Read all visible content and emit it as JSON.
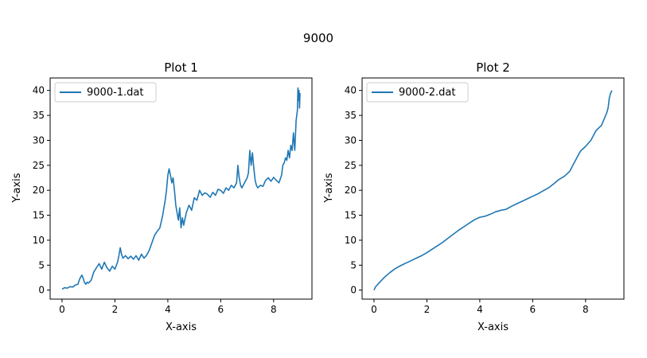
{
  "figure": {
    "title": "9000"
  },
  "chart_data": [
    {
      "type": "line",
      "title": "Plot 1",
      "xlabel": "X-axis",
      "ylabel": "Y-axis",
      "xlim": [
        -0.45,
        9.45
      ],
      "ylim": [
        -1.8,
        42.5
      ],
      "xticks": [
        0,
        2,
        4,
        6,
        8
      ],
      "yticks": [
        0,
        5,
        10,
        15,
        20,
        25,
        30,
        35,
        40
      ],
      "grid": false,
      "legend_position": "upper-left",
      "series": [
        {
          "name": "9000-1.dat",
          "color": "#1f77b4",
          "x": [
            0.0,
            0.1,
            0.2,
            0.3,
            0.4,
            0.5,
            0.6,
            0.65,
            0.7,
            0.75,
            0.8,
            0.85,
            0.9,
            0.95,
            1.0,
            1.1,
            1.15,
            1.2,
            1.3,
            1.4,
            1.5,
            1.6,
            1.7,
            1.8,
            1.9,
            2.0,
            2.1,
            2.15,
            2.2,
            2.25,
            2.3,
            2.4,
            2.5,
            2.6,
            2.7,
            2.8,
            2.9,
            3.0,
            3.1,
            3.2,
            3.3,
            3.4,
            3.5,
            3.6,
            3.7,
            3.8,
            3.9,
            3.95,
            4.0,
            4.05,
            4.1,
            4.15,
            4.2,
            4.25,
            4.3,
            4.35,
            4.4,
            4.45,
            4.5,
            4.55,
            4.6,
            4.7,
            4.8,
            4.9,
            5.0,
            5.1,
            5.2,
            5.3,
            5.4,
            5.5,
            5.6,
            5.7,
            5.8,
            5.9,
            6.0,
            6.1,
            6.2,
            6.3,
            6.4,
            6.5,
            6.6,
            6.65,
            6.7,
            6.75,
            6.8,
            6.9,
            7.0,
            7.05,
            7.1,
            7.15,
            7.2,
            7.25,
            7.3,
            7.35,
            7.4,
            7.5,
            7.6,
            7.7,
            7.8,
            7.9,
            8.0,
            8.1,
            8.2,
            8.3,
            8.35,
            8.4,
            8.45,
            8.5,
            8.55,
            8.6,
            8.65,
            8.7,
            8.75,
            8.8,
            8.85,
            8.9,
            8.92,
            8.94,
            8.96,
            8.98,
            9.0
          ],
          "y": [
            0.2,
            0.5,
            0.4,
            0.7,
            0.6,
            1.0,
            1.2,
            2.0,
            2.6,
            3.0,
            2.4,
            1.5,
            1.2,
            1.6,
            1.4,
            2.0,
            2.8,
            3.6,
            4.5,
            5.3,
            4.2,
            5.6,
            4.5,
            3.8,
            4.8,
            4.2,
            5.6,
            6.9,
            8.5,
            7.2,
            6.4,
            6.9,
            6.3,
            6.8,
            6.2,
            6.9,
            6.0,
            7.2,
            6.4,
            7.0,
            8.0,
            9.5,
            11.0,
            11.8,
            12.5,
            14.8,
            18.0,
            20.0,
            23.0,
            24.3,
            23.0,
            21.5,
            22.5,
            20.0,
            17.0,
            15.5,
            14.0,
            16.5,
            12.5,
            14.5,
            13.0,
            15.5,
            17.0,
            16.0,
            18.5,
            18.0,
            20.0,
            19.0,
            19.5,
            19.2,
            18.6,
            19.6,
            19.0,
            20.2,
            20.0,
            19.4,
            20.5,
            20.0,
            21.0,
            20.5,
            21.5,
            25.0,
            22.5,
            21.0,
            20.5,
            21.5,
            22.5,
            23.5,
            28.0,
            25.0,
            27.5,
            24.5,
            22.0,
            21.0,
            20.5,
            21.0,
            20.8,
            22.0,
            22.5,
            21.8,
            22.6,
            22.0,
            21.5,
            23.0,
            25.0,
            25.5,
            26.5,
            26.0,
            28.0,
            26.5,
            29.0,
            28.0,
            31.5,
            28.0,
            34.0,
            36.0,
            40.5,
            38.0,
            40.0,
            36.5,
            39.5
          ]
        }
      ]
    },
    {
      "type": "line",
      "title": "Plot 2",
      "xlabel": "X-axis",
      "ylabel": "Y-axis",
      "xlim": [
        -0.45,
        9.45
      ],
      "ylim": [
        -1.8,
        42.5
      ],
      "xticks": [
        0,
        2,
        4,
        6,
        8
      ],
      "yticks": [
        0,
        5,
        10,
        15,
        20,
        25,
        30,
        35,
        40
      ],
      "grid": false,
      "legend_position": "upper-left",
      "series": [
        {
          "name": "9000-2.dat",
          "color": "#1f77b4",
          "x": [
            0.0,
            0.05,
            0.2,
            0.4,
            0.6,
            0.8,
            1.0,
            1.2,
            1.4,
            1.6,
            1.8,
            2.0,
            2.2,
            2.4,
            2.6,
            2.8,
            3.0,
            3.2,
            3.4,
            3.6,
            3.8,
            4.0,
            4.2,
            4.4,
            4.6,
            4.8,
            5.0,
            5.2,
            5.4,
            5.6,
            5.8,
            6.0,
            6.2,
            6.4,
            6.6,
            6.8,
            7.0,
            7.2,
            7.4,
            7.6,
            7.8,
            8.0,
            8.2,
            8.4,
            8.6,
            8.8,
            8.85,
            8.9,
            8.95,
            9.0
          ],
          "y": [
            0.0,
            0.6,
            1.5,
            2.6,
            3.5,
            4.3,
            4.9,
            5.4,
            5.9,
            6.4,
            6.9,
            7.5,
            8.2,
            8.9,
            9.6,
            10.4,
            11.2,
            12.0,
            12.7,
            13.4,
            14.1,
            14.6,
            14.8,
            15.2,
            15.7,
            16.0,
            16.2,
            16.8,
            17.3,
            17.8,
            18.3,
            18.8,
            19.3,
            19.9,
            20.5,
            21.3,
            22.2,
            22.8,
            23.8,
            25.8,
            27.8,
            28.8,
            30.0,
            32.0,
            33.0,
            35.5,
            36.5,
            38.5,
            39.5,
            40.0
          ]
        }
      ]
    }
  ]
}
